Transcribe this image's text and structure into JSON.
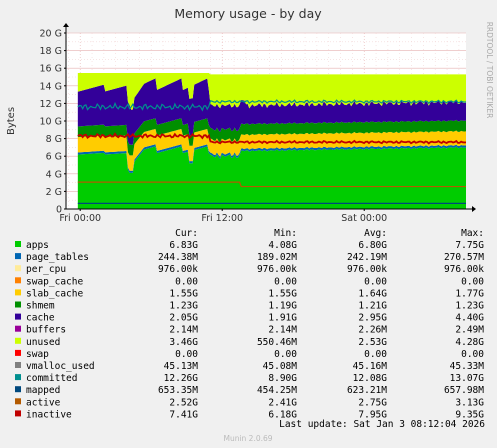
{
  "chart_data": {
    "type": "area",
    "title": "Memory usage - by day",
    "ylabel": "Bytes",
    "xlabel": "",
    "side_label": "RRDTOOL / TOBI OETIKER",
    "footer": "Munin 2.0.69",
    "last_update": "Last update: Sat Jan  3 08:12:04 2026",
    "ylim": [
      0,
      20
    ],
    "yticks": [
      "0",
      "2 G",
      "4 G",
      "6 G",
      "8 G",
      "10 G",
      "12 G",
      "14 G",
      "16 G",
      "18 G",
      "20 G"
    ],
    "xticks": [
      "Fri 00:00",
      "Fri 12:00",
      "Sat 00:00"
    ],
    "x_tick_hours": [
      0,
      12,
      24
    ],
    "x_range_hours": [
      -1.2,
      32.6
    ],
    "grid": true,
    "columns": [
      "Cur:",
      "Min:",
      "Avg:",
      "Max:"
    ],
    "series": [
      {
        "name": "apps",
        "color": "#00cc00",
        "cur": "6.83G",
        "min": "4.08G",
        "avg": "6.80G",
        "max": "7.75G"
      },
      {
        "name": "page_tables",
        "color": "#0066b3",
        "cur": "244.38M",
        "min": "189.02M",
        "avg": "242.19M",
        "max": "270.57M"
      },
      {
        "name": "per_cpu",
        "color": "#ffeb99",
        "cur": "976.00k",
        "min": "976.00k",
        "avg": "976.00k",
        "max": "976.00k"
      },
      {
        "name": "swap_cache",
        "color": "#ff8000",
        "cur": "0.00",
        "min": "0.00",
        "avg": "0.00",
        "max": "0.00"
      },
      {
        "name": "slab_cache",
        "color": "#ffcc00",
        "cur": "1.55G",
        "min": "1.55G",
        "avg": "1.64G",
        "max": "1.77G"
      },
      {
        "name": "shmem",
        "color": "#008f00",
        "cur": "1.23G",
        "min": "1.19G",
        "avg": "1.21G",
        "max": "1.23G"
      },
      {
        "name": "cache",
        "color": "#330099",
        "cur": "2.05G",
        "min": "1.91G",
        "avg": "2.95G",
        "max": "4.40G"
      },
      {
        "name": "buffers",
        "color": "#990099",
        "cur": "2.14M",
        "min": "2.14M",
        "avg": "2.26M",
        "max": "2.49M"
      },
      {
        "name": "unused",
        "color": "#ccff00",
        "cur": "3.46G",
        "min": "550.46M",
        "avg": "2.53G",
        "max": "4.28G"
      },
      {
        "name": "swap",
        "color": "#ff0000",
        "cur": "0.00",
        "min": "0.00",
        "avg": "0.00",
        "max": "0.00"
      },
      {
        "name": "vmalloc_used",
        "color": "#808080",
        "cur": "45.13M",
        "min": "45.08M",
        "avg": "45.16M",
        "max": "45.33M"
      },
      {
        "name": "committed",
        "color": "#008f8f",
        "cur": "12.26G",
        "min": "8.90G",
        "avg": "12.08G",
        "max": "13.07G"
      },
      {
        "name": "mapped",
        "color": "#00487d",
        "cur": "653.35M",
        "min": "454.25M",
        "avg": "623.21M",
        "max": "657.98M"
      },
      {
        "name": "active",
        "color": "#b35a00",
        "cur": "2.52G",
        "min": "2.41G",
        "avg": "2.75G",
        "max": "3.13G"
      },
      {
        "name": "inactive",
        "color": "#b38f00",
        "cur": "7.41G",
        "min": "6.18G",
        "avg": "7.95G",
        "max": "9.35G"
      }
    ],
    "extra_legend": [
      {
        "name": "inactive",
        "color": "#c00000"
      }
    ]
  }
}
